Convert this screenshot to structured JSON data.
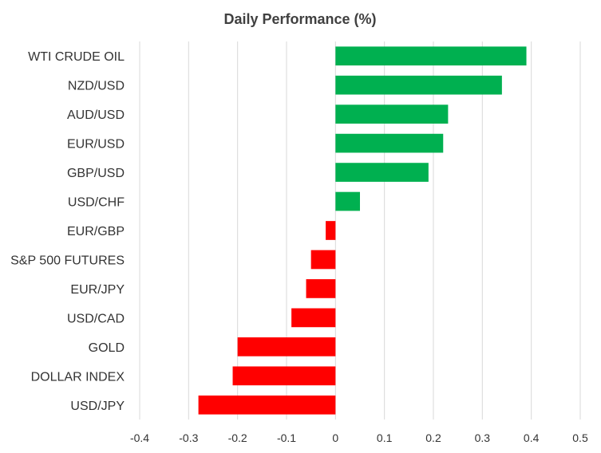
{
  "chart_data": {
    "type": "bar",
    "orientation": "horizontal",
    "title": "Daily Performance (%)",
    "xlabel": "",
    "ylabel": "",
    "categories": [
      "WTI CRUDE OIL",
      "NZD/USD",
      "AUD/USD",
      "EUR/USD",
      "GBP/USD",
      "USD/CHF",
      "EUR/GBP",
      "S&P 500 FUTURES",
      "EUR/JPY",
      "USD/CAD",
      "GOLD",
      "DOLLAR INDEX",
      "USD/JPY"
    ],
    "values": [
      0.39,
      0.34,
      0.23,
      0.22,
      0.19,
      0.05,
      -0.02,
      -0.05,
      -0.06,
      -0.09,
      -0.2,
      -0.21,
      -0.28
    ],
    "xlim": [
      -0.4,
      0.5
    ],
    "x_ticks": [
      "-0.4",
      "-0.3",
      "-0.2",
      "-0.1",
      "0",
      "0.1",
      "0.2",
      "0.3",
      "0.4",
      "0.5"
    ],
    "x_tick_values": [
      -0.4,
      -0.3,
      -0.2,
      -0.1,
      0,
      0.1,
      0.2,
      0.3,
      0.4,
      0.5
    ],
    "grid": "vertical",
    "legend": "none",
    "colors": {
      "positive": "#00b050",
      "negative": "#ff0000",
      "grid": "#d9d9d9"
    }
  }
}
